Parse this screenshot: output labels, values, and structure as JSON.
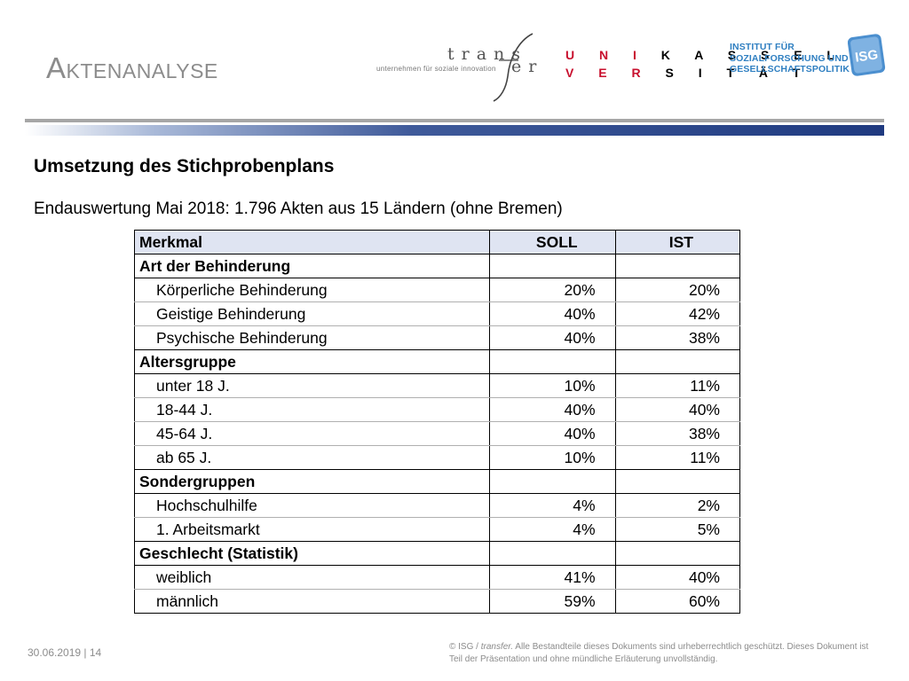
{
  "header": {
    "title": "Aktenanalyse",
    "logos": {
      "transfer_word": "trans",
      "transfer_suffix": "er",
      "transfer_slogan": "unternehmen für soziale innovation",
      "unikassel_row1_a": "U N I",
      "unikassel_row1_b": "K A S S E L",
      "unikassel_row2_a": "V E R",
      "unikassel_row2_b": "S I T Ä T",
      "isg_line1": "INSTITUT FÜR",
      "isg_line2": "SOZIALFORSCHUNG UND",
      "isg_line3": "GESELLSCHAFTSPOLITIK",
      "isg_badge": "ISG"
    }
  },
  "subtitle": "Umsetzung des Stichprobenplans",
  "lead": "Endauswertung Mai 2018: 1.796 Akten aus 15 Ländern (ohne Bremen)",
  "table": {
    "headers": [
      "Merkmal",
      "SOLL",
      "IST"
    ],
    "rows": [
      {
        "label": "Art der Behinderung",
        "soll": "",
        "ist": "",
        "group": true
      },
      {
        "label": "Körperliche Behinderung",
        "soll": "20%",
        "ist": "20%",
        "group": false
      },
      {
        "label": "Geistige Behinderung",
        "soll": "40%",
        "ist": "42%",
        "group": false
      },
      {
        "label": "Psychische Behinderung",
        "soll": "40%",
        "ist": "38%",
        "group": false
      },
      {
        "label": "Altersgruppe",
        "soll": "",
        "ist": "",
        "group": true
      },
      {
        "label": "unter 18 J.",
        "soll": "10%",
        "ist": "11%",
        "group": false
      },
      {
        "label": "18-44 J.",
        "soll": "40%",
        "ist": "40%",
        "group": false
      },
      {
        "label": "45-64 J.",
        "soll": "40%",
        "ist": "38%",
        "group": false
      },
      {
        "label": "ab 65 J.",
        "soll": "10%",
        "ist": "11%",
        "group": false
      },
      {
        "label": "Sondergruppen",
        "soll": "",
        "ist": "",
        "group": true
      },
      {
        "label": "Hochschulhilfe",
        "soll": "4%",
        "ist": "2%",
        "group": false
      },
      {
        "label": "1. Arbeitsmarkt",
        "soll": "4%",
        "ist": "5%",
        "group": false
      },
      {
        "label": "Geschlecht (Statistik)",
        "soll": "",
        "ist": "",
        "group": true
      },
      {
        "label": "weiblich",
        "soll": "41%",
        "ist": "40%",
        "group": false
      },
      {
        "label": "männlich",
        "soll": "59%",
        "ist": "60%",
        "group": false
      }
    ]
  },
  "footer": {
    "date_page": "30.06.2019 | 14",
    "copyright_symbol": "©",
    "copyright_org": "ISG /",
    "copyright_org_italic": "transfer.",
    "copyright_text": "Alle Bestandteile dieses Dokuments sind urheberrechtlich geschützt. Dieses Dokument ist Teil der Präsentation und ohne mündliche Erläuterung unvollständig."
  },
  "colors": {
    "title_grey": "#8c8c8c",
    "bar_blue": "#1f3a80",
    "table_header_bg": "#dfe4f2",
    "unikassel_red": "#c8102e",
    "isg_blue": "#2f7fc1"
  }
}
